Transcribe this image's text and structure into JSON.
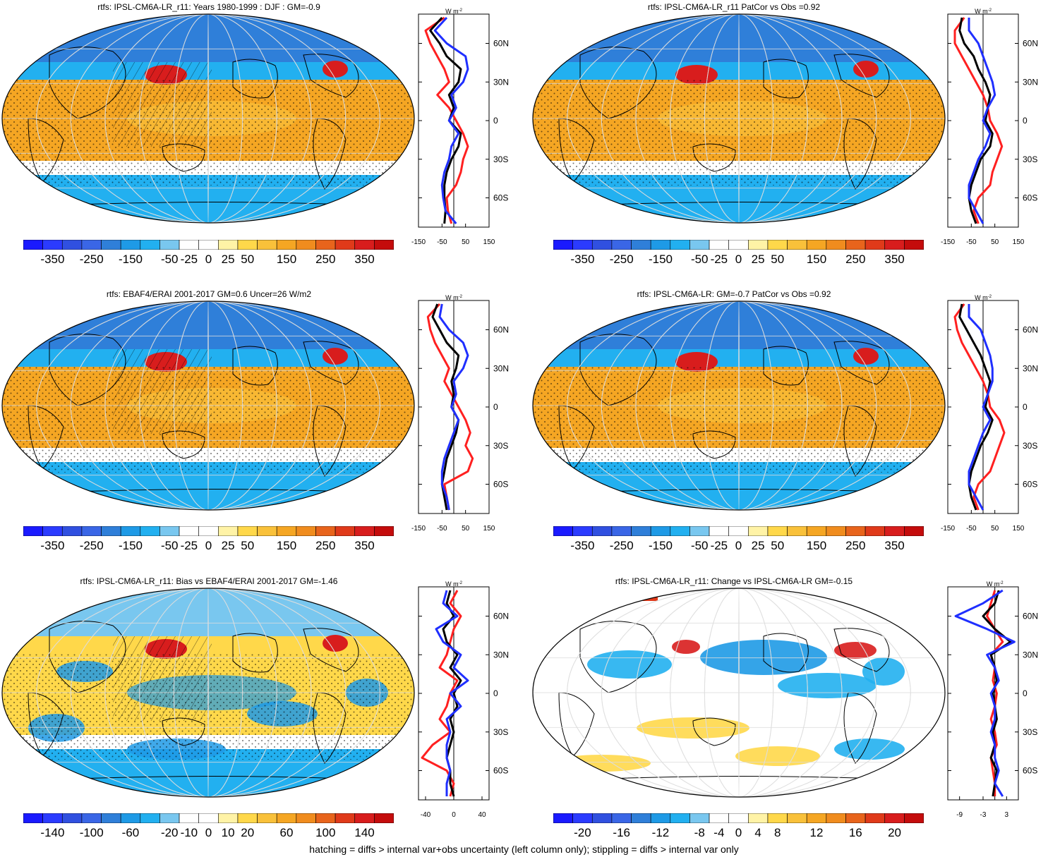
{
  "footnote": "hatching = diffs > internal var+obs uncertainty (left column only); stippling = diffs > internal var only",
  "colors": {
    "palette": [
      "#1a1aff",
      "#2b3bff",
      "#3050e0",
      "#3a66e6",
      "#2f7fd9",
      "#1e9ae6",
      "#22b0f0",
      "#79c7ef",
      "#ffffff",
      "#ffffff",
      "#fff3a6",
      "#ffd84a",
      "#f9c13a",
      "#f5a623",
      "#f08c1e",
      "#e8641c",
      "#e03a1a",
      "#d81d1d",
      "#c40c0c"
    ],
    "land": "#000000",
    "grid": "#dddddd",
    "obs_line": "#ff2020",
    "model_line": "#000000",
    "alt_line": "#1f2fff"
  },
  "chart_data": [
    {
      "type": "heatmap",
      "title": "rtfs: IPSL-CM6A-LR_r11: Years 1980-1999 : DJF : GM=-0.9",
      "colorbar_labels": [
        "-350",
        "-250",
        "-150",
        "-50",
        "-25",
        "0",
        "25",
        "50",
        "150",
        "250",
        "350"
      ],
      "zonal": {
        "title": "W m",
        "title_sup": "-2",
        "xticks": [
          "-150",
          "-50",
          "50",
          "150"
        ],
        "xlim": [
          -150,
          150
        ],
        "ylabels": [
          "60N",
          "30N",
          "0",
          "30S",
          "60S"
        ],
        "lat": [
          80,
          70,
          60,
          50,
          40,
          30,
          20,
          10,
          0,
          -10,
          -20,
          -30,
          -40,
          -50,
          -60,
          -70,
          -80
        ],
        "series": [
          {
            "color": "red",
            "values": [
              -40,
              -120,
              -100,
              -70,
              -40,
              -20,
              -70,
              -20,
              10,
              40,
              60,
              40,
              30,
              10,
              -30,
              -25,
              -10
            ]
          },
          {
            "color": "black",
            "values": [
              -50,
              -100,
              -60,
              -30,
              30,
              20,
              -20,
              0,
              -20,
              30,
              20,
              -10,
              -30,
              -40,
              -40,
              -35,
              -40
            ]
          },
          {
            "color": "blue",
            "values": [
              -30,
              -80,
              -30,
              50,
              60,
              40,
              -10,
              10,
              -20,
              20,
              -10,
              -20,
              -40,
              -50,
              -45,
              -35,
              10
            ]
          }
        ]
      }
    },
    {
      "type": "heatmap",
      "title": "rtfs: IPSL-CM6A-LR_r11 PatCor vs Obs =0.92",
      "colorbar_labels": [
        "-350",
        "-250",
        "-150",
        "-50",
        "-25",
        "0",
        "25",
        "50",
        "150",
        "250",
        "350"
      ],
      "zonal": {
        "title": "W m",
        "title_sup": "-2",
        "xticks": [
          "-150",
          "-50",
          "50",
          "150"
        ],
        "xlim": [
          -150,
          150
        ],
        "ylabels": [
          "60N",
          "30N",
          "0",
          "30S",
          "60S"
        ],
        "lat": [
          80,
          70,
          60,
          50,
          40,
          30,
          20,
          10,
          0,
          -10,
          -20,
          -30,
          -40,
          -50,
          -60,
          -70,
          -80
        ],
        "series": [
          {
            "color": "red",
            "values": [
              -80,
              -120,
              -120,
              -90,
              -60,
              -30,
              0,
              20,
              30,
              60,
              80,
              60,
              40,
              30,
              -20,
              -40,
              -20
            ]
          },
          {
            "color": "black",
            "values": [
              -90,
              -100,
              -80,
              -40,
              -20,
              10,
              30,
              20,
              10,
              40,
              30,
              -10,
              -30,
              -50,
              -60,
              -50,
              -30
            ]
          },
          {
            "color": "blue",
            "values": [
              -60,
              -60,
              -20,
              0,
              20,
              40,
              50,
              20,
              0,
              30,
              10,
              -20,
              -40,
              -60,
              -60,
              -30,
              0
            ]
          }
        ]
      }
    },
    {
      "type": "heatmap",
      "title": "rtfs: EBAF4/ERAI 2001-2017 GM=0.6 Uncer=26 W/m2",
      "colorbar_labels": [
        "-350",
        "-250",
        "-150",
        "-50",
        "-25",
        "0",
        "25",
        "50",
        "150",
        "250",
        "350"
      ],
      "zonal": {
        "title": "W m",
        "title_sup": "-2",
        "xticks": [
          "-150",
          "-50",
          "50",
          "150"
        ],
        "xlim": [
          -150,
          150
        ],
        "ylabels": [
          "60N",
          "30N",
          "0",
          "30S",
          "60S"
        ],
        "lat": [
          80,
          70,
          60,
          50,
          40,
          30,
          20,
          10,
          0,
          -10,
          -20,
          -30,
          -40,
          -50,
          -60,
          -70,
          -80
        ],
        "series": [
          {
            "color": "red",
            "values": [
              -60,
              -110,
              -100,
              -80,
              -50,
              -20,
              -40,
              -10,
              20,
              50,
              70,
              50,
              80,
              60,
              -40,
              -30,
              -20
            ]
          },
          {
            "color": "black",
            "values": [
              -70,
              -90,
              -60,
              -30,
              20,
              10,
              -10,
              0,
              -10,
              20,
              10,
              -10,
              -30,
              -40,
              -50,
              -40,
              -30
            ]
          },
          {
            "color": "blue",
            "values": [
              -50,
              -60,
              -20,
              40,
              60,
              40,
              0,
              10,
              -10,
              20,
              0,
              -20,
              -40,
              -50,
              -50,
              -30,
              -20
            ]
          }
        ]
      }
    },
    {
      "type": "heatmap",
      "title": "rtfs: IPSL-CM6A-LR: GM=-0.7 PatCor vs Obs =0.92",
      "colorbar_labels": [
        "-350",
        "-250",
        "-150",
        "-50",
        "-25",
        "0",
        "25",
        "50",
        "150",
        "250",
        "350"
      ],
      "zonal": {
        "title": "W m",
        "title_sup": "-2",
        "xticks": [
          "-150",
          "-50",
          "50",
          "150"
        ],
        "xlim": [
          -150,
          150
        ],
        "ylabels": [
          "60N",
          "30N",
          "0",
          "30S",
          "60S"
        ],
        "lat": [
          80,
          70,
          60,
          50,
          40,
          30,
          20,
          10,
          0,
          -10,
          -20,
          -30,
          -40,
          -50,
          -60,
          -70,
          -80
        ],
        "series": [
          {
            "color": "red",
            "values": [
              -80,
              -120,
              -110,
              -90,
              -60,
              -30,
              0,
              20,
              30,
              70,
              90,
              70,
              50,
              30,
              -20,
              -40,
              -20
            ]
          },
          {
            "color": "black",
            "values": [
              -90,
              -100,
              -70,
              -40,
              -10,
              10,
              30,
              20,
              10,
              40,
              20,
              -10,
              -30,
              -50,
              -60,
              -50,
              -30
            ]
          },
          {
            "color": "blue",
            "values": [
              -60,
              -60,
              -10,
              10,
              30,
              40,
              40,
              20,
              0,
              30,
              0,
              -20,
              -40,
              -60,
              -60,
              -30,
              0
            ]
          }
        ]
      }
    },
    {
      "type": "heatmap",
      "title": "rtfs: IPSL-CM6A-LR_r11: Bias vs EBAF4/ERAI 2001-2017 GM=-1.46",
      "colorbar_labels": [
        "-140",
        "-100",
        "-60",
        "-20",
        "-10",
        "0",
        "10",
        "20",
        "60",
        "100",
        "140"
      ],
      "zonal": {
        "title": "W m",
        "title_sup": "-2",
        "xticks": [
          "-40",
          "0",
          "40"
        ],
        "xlim": [
          -50,
          50
        ],
        "ylabels": [
          "60N",
          "30N",
          "0",
          "30S",
          "60S"
        ],
        "lat": [
          80,
          70,
          60,
          50,
          40,
          30,
          20,
          10,
          0,
          -10,
          -20,
          -30,
          -40,
          -50,
          -60,
          -70,
          -80
        ],
        "series": [
          {
            "color": "red",
            "values": [
              5,
              -5,
              10,
              0,
              -5,
              -10,
              -20,
              5,
              -5,
              -10,
              -20,
              -5,
              -30,
              -45,
              -10,
              0,
              -5
            ]
          },
          {
            "color": "black",
            "values": [
              -5,
              -10,
              0,
              -15,
              -10,
              5,
              -5,
              10,
              0,
              5,
              -5,
              0,
              -5,
              -10,
              -5,
              -5,
              0
            ]
          },
          {
            "color": "blue",
            "values": [
              -10,
              -15,
              5,
              -25,
              -15,
              10,
              0,
              20,
              -5,
              10,
              -10,
              -5,
              -10,
              -10,
              -5,
              -10,
              -10
            ]
          }
        ]
      }
    },
    {
      "type": "heatmap",
      "title": "rtfs: IPSL-CM6A-LR_r11: Change vs IPSL-CM6A-LR GM=-0.15",
      "colorbar_labels": [
        "-20",
        "-16",
        "-12",
        "-8",
        "-4",
        "0",
        "4",
        "8",
        "12",
        "16",
        "20"
      ],
      "zonal": {
        "title": "W m",
        "title_sup": "-2",
        "xticks": [
          "-9",
          "-3",
          "3"
        ],
        "xlim": [
          -12,
          6
        ],
        "ylabels": [
          "60N",
          "30N",
          "0",
          "30S",
          "60S"
        ],
        "lat": [
          80,
          70,
          60,
          50,
          40,
          30,
          20,
          10,
          0,
          -10,
          -20,
          -30,
          -40,
          -50,
          -60,
          -70,
          -80
        ],
        "series": [
          {
            "color": "red",
            "values": [
              0,
              -1,
              -2,
              0,
              2,
              -1,
              0,
              -0.5,
              0.5,
              0,
              -1,
              0,
              0.5,
              -1,
              -0.5,
              0,
              0
            ]
          },
          {
            "color": "black",
            "values": [
              1,
              0,
              -3,
              0,
              4,
              -1,
              0,
              0.5,
              -0.5,
              0,
              0.5,
              -0.5,
              0,
              -1,
              0.5,
              0,
              -0.5
            ]
          },
          {
            "color": "blue",
            "values": [
              2,
              -3,
              -10,
              -2,
              5,
              -2,
              0,
              1,
              -1,
              0,
              0,
              -1,
              0,
              0,
              1,
              0,
              2
            ]
          }
        ]
      }
    }
  ]
}
